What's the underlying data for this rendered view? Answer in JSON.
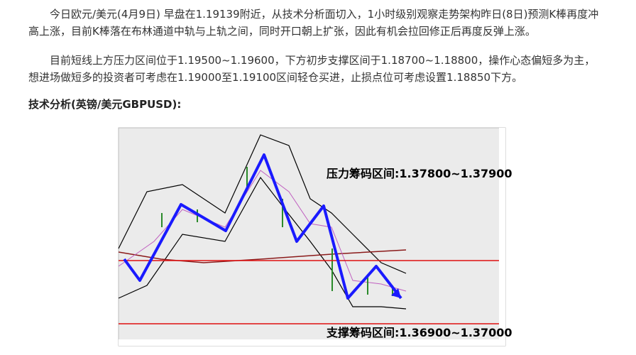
{
  "paragraphs": [
    "今日欧元/美元(4月9日) 早盘在1.19139附近，从技术分析面切入，1小时级别观察走势架构昨日(8日)预测K棒再度冲高上涨，目前K棒落在布林通道中轨与上轨之间，同时开口朝上扩张，因此有机会拉回修正后再度反弹上涨。",
    "目前短线上方压力区间位于1.19500~1.19600，下方初步支撑区间于1.18700~1.18800，操作心态偏短多为主，想进场做短多的投资者可考虑在1.19000至1.19100区间轻仓买进，止损点位可考虑设置1.18850下方。"
  ],
  "heading": "技术分析(英镑/美元GBPUSD):",
  "figure": {
    "annotations": [
      "压力筹码区间:1.37800~1.37900",
      "支撑筹码区间:1.36900~1.37000"
    ]
  }
}
